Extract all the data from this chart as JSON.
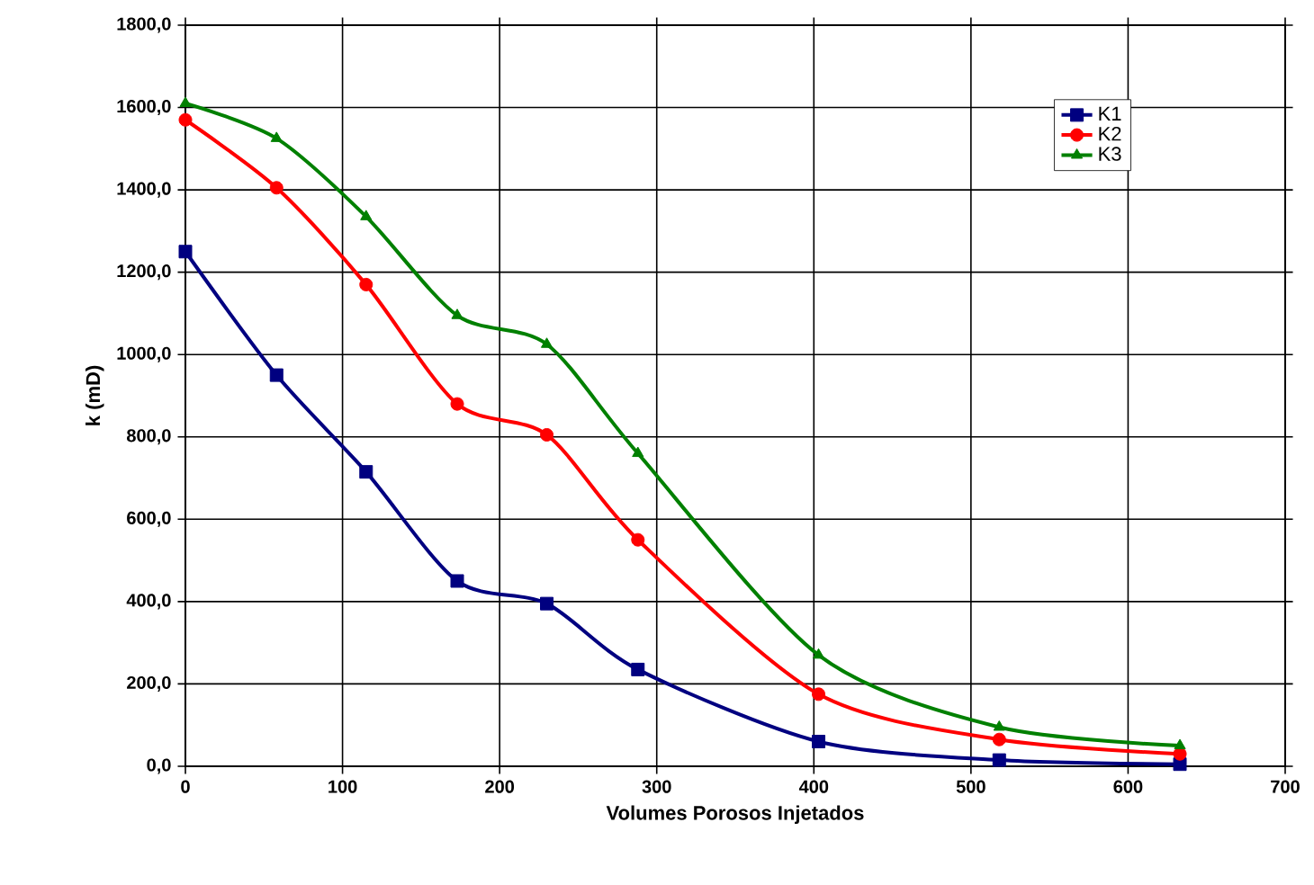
{
  "chart_data": {
    "type": "line",
    "xlabel": "Volumes Porosos Injetados",
    "ylabel": "k (mD)",
    "xlim": [
      0,
      700
    ],
    "xticks": [
      0,
      100,
      200,
      300,
      400,
      500,
      600,
      700
    ],
    "ylim": [
      0,
      1800
    ],
    "yticks": [
      {
        "value": 0,
        "label": "0,0"
      },
      {
        "value": 200,
        "label": "200,0"
      },
      {
        "value": 400,
        "label": "400,0"
      },
      {
        "value": 600,
        "label": "600,0"
      },
      {
        "value": 800,
        "label": "800,0"
      },
      {
        "value": 1000,
        "label": "1000,0"
      },
      {
        "value": 1200,
        "label": "1200,0"
      },
      {
        "value": 1400,
        "label": "1400,0"
      },
      {
        "value": 1600,
        "label": "1600,0"
      },
      {
        "value": 1800,
        "label": "1800,0"
      }
    ],
    "x": [
      0,
      58,
      115,
      173,
      230,
      288,
      403,
      518,
      633
    ],
    "grid": true,
    "legend": "top right",
    "line_style": "solid",
    "series": [
      {
        "name": "K1",
        "color": "#000080",
        "marker": "square",
        "values": [
          1250,
          950,
          715,
          450,
          395,
          235,
          60,
          15,
          5
        ]
      },
      {
        "name": "K2",
        "color": "#ff0000",
        "marker": "circle",
        "values": [
          1570,
          1405,
          1170,
          880,
          805,
          550,
          175,
          65,
          30
        ]
      },
      {
        "name": "K3",
        "color": "#008000",
        "marker": "triangle",
        "values": [
          1610,
          1525,
          1335,
          1095,
          1025,
          760,
          270,
          95,
          50
        ]
      }
    ]
  }
}
